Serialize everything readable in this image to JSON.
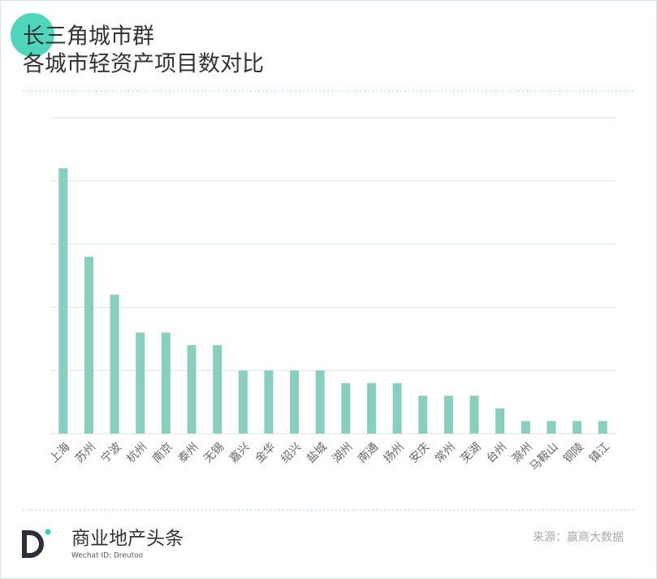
{
  "chart_data": {
    "type": "bar",
    "title": "长三角城市群",
    "subtitle": "各城市轻资产项目数对比",
    "categories": [
      "上海",
      "苏州",
      "宁波",
      "杭州",
      "南京",
      "泰州",
      "无锡",
      "嘉兴",
      "金华",
      "绍兴",
      "盐城",
      "湖州",
      "南通",
      "扬州",
      "安庆",
      "常州",
      "芜湖",
      "台州",
      "滁州",
      "马鞍山",
      "铜陵",
      "镇江"
    ],
    "values": [
      21,
      14,
      11,
      8,
      8,
      7,
      7,
      5,
      5,
      5,
      5,
      4,
      4,
      4,
      3,
      3,
      3,
      2,
      1,
      1,
      1,
      1
    ],
    "color": "#88cfc0",
    "ylim": [
      0,
      25
    ],
    "yticks": [
      0,
      5,
      10,
      15,
      20,
      25
    ],
    "grid": true
  },
  "footer": {
    "brand": "商业地产头条",
    "wechat": "Wechat ID: Dreutoo",
    "source": "来源：赢商大数据"
  }
}
